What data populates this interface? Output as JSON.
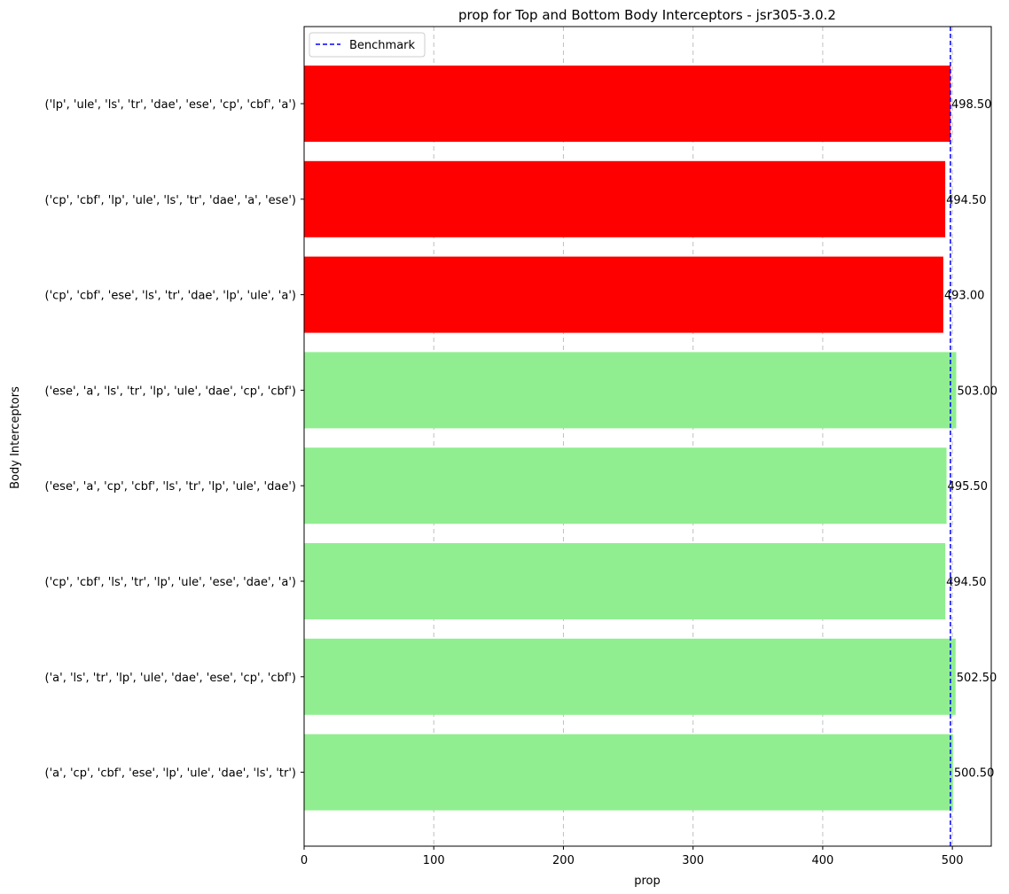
{
  "chart_data": {
    "type": "bar",
    "orientation": "horizontal",
    "title": "prop for Top and Bottom Body Interceptors - jsr305-3.0.2",
    "xlabel": "prop",
    "ylabel": "Body Interceptors",
    "xlim": [
      0,
      530
    ],
    "xticks": [
      0,
      100,
      200,
      300,
      400,
      500
    ],
    "grid": "x-dashed",
    "legend": {
      "placement": "top-left",
      "entries": [
        "Benchmark"
      ]
    },
    "benchmark": {
      "value": 498.5,
      "color": "#0000ff",
      "style": "dashed"
    },
    "categories": [
      "('lp', 'ule', 'ls', 'tr', 'dae', 'ese', 'cp', 'cbf', 'a')",
      "('cp', 'cbf', 'lp', 'ule', 'ls', 'tr', 'dae', 'a', 'ese')",
      "('cp', 'cbf', 'ese', 'ls', 'tr', 'dae', 'lp', 'ule', 'a')",
      "('ese', 'a', 'ls', 'tr', 'lp', 'ule', 'dae', 'cp', 'cbf')",
      "('ese', 'a', 'cp', 'cbf', 'ls', 'tr', 'lp', 'ule', 'dae')",
      "('cp', 'cbf', 'ls', 'tr', 'lp', 'ule', 'ese', 'dae', 'a')",
      "('a', 'ls', 'tr', 'lp', 'ule', 'dae', 'ese', 'cp', 'cbf')",
      "('a', 'cp', 'cbf', 'ese', 'lp', 'ule', 'dae', 'ls', 'tr')"
    ],
    "values": [
      498.5,
      494.5,
      493.0,
      503.0,
      495.5,
      494.5,
      502.5,
      500.5
    ],
    "value_labels": [
      "498.50",
      "494.50",
      "493.00",
      "503.00",
      "495.50",
      "494.50",
      "502.50",
      "500.50"
    ],
    "colors": [
      "#ff0000",
      "#ff0000",
      "#ff0000",
      "#90ee90",
      "#90ee90",
      "#90ee90",
      "#90ee90",
      "#90ee90"
    ]
  }
}
